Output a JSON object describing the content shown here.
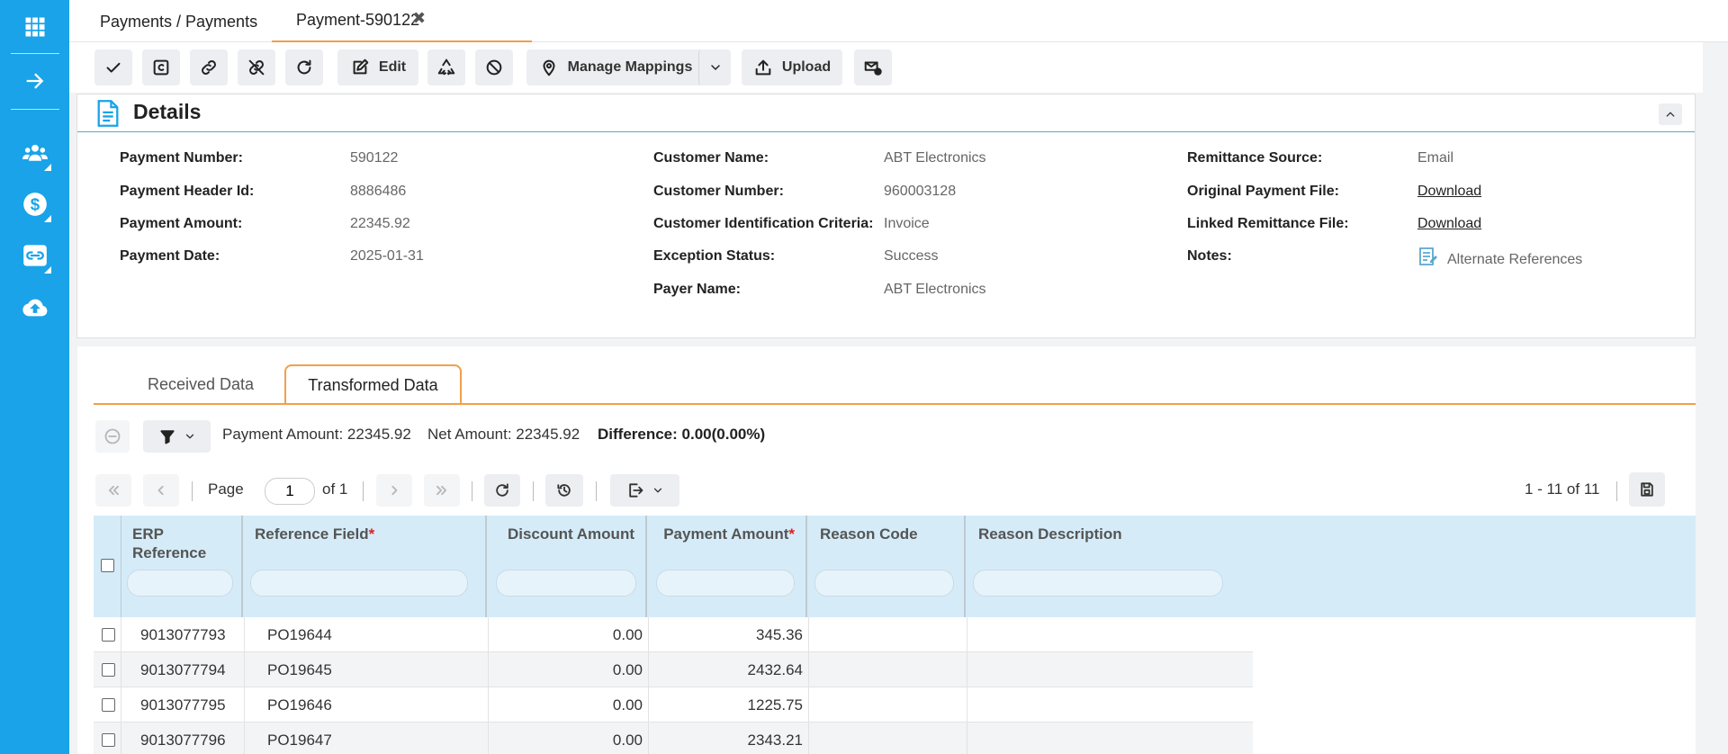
{
  "sidebar": {
    "items": [
      {
        "icon": "apps-grid-icon"
      },
      {
        "icon": "arrow-right-icon"
      },
      {
        "icon": "users-icon"
      },
      {
        "icon": "dollar-icon"
      },
      {
        "icon": "link-icon"
      },
      {
        "icon": "cloud-upload-icon"
      }
    ]
  },
  "tabs": {
    "breadcrumb": "Payments / Payments",
    "document_tab": "Payment-590122",
    "close_glyph": "✖"
  },
  "toolbar": {
    "buttons": [
      {
        "icon": "check-icon"
      },
      {
        "icon": "copyright-icon"
      },
      {
        "icon": "link-icon"
      },
      {
        "icon": "unlink-icon"
      },
      {
        "icon": "refresh-icon"
      },
      {
        "icon": "edit-icon",
        "label": "Edit"
      },
      {
        "icon": "recycle-icon"
      },
      {
        "icon": "block-icon"
      },
      {
        "icon": "map-pin-icon",
        "label": "Manage Mappings"
      },
      {
        "icon": "chevron-down-icon"
      },
      {
        "icon": "upload-icon",
        "label": "Upload"
      },
      {
        "icon": "mail-icon"
      }
    ]
  },
  "details": {
    "title": "Details",
    "col1": [
      {
        "label": "Payment Number:",
        "value": "590122"
      },
      {
        "label": "Payment Header Id:",
        "value": "8886486"
      },
      {
        "label": "Payment Amount:",
        "value": "22345.92"
      },
      {
        "label": "Payment Date:",
        "value": "2025-01-31"
      }
    ],
    "col2": [
      {
        "label": "Customer Name:",
        "value": "ABT Electronics"
      },
      {
        "label": "Customer Number:",
        "value": "960003128"
      },
      {
        "label": "Customer Identification Criteria:",
        "value": "Invoice"
      },
      {
        "label": "Exception Status:",
        "value": "Success"
      },
      {
        "label": "Payer Name:",
        "value": "ABT Electronics"
      }
    ],
    "col3": [
      {
        "label": "Remittance Source:",
        "value": "Email"
      },
      {
        "label": "Original Payment File:",
        "link": "Download"
      },
      {
        "label": "Linked Remittance File:",
        "link": "Download"
      },
      {
        "label": "Notes:",
        "value": "Alternate References",
        "icon": "notes-icon"
      }
    ]
  },
  "data_tabs": {
    "received": "Received Data",
    "transformed": "Transformed Data"
  },
  "summary": {
    "payment_amount": "Payment Amount: 22345.92",
    "net_amount": "Net Amount: 22345.92",
    "difference": "Difference: 0.00(0.00%)"
  },
  "pager": {
    "page_label": "Page",
    "page_value": "1",
    "of_label": "of 1",
    "range": "1 - 11 of 11"
  },
  "grid": {
    "columns": [
      {
        "title": "ERP Reference",
        "required": false
      },
      {
        "title": "Reference Field",
        "required": true
      },
      {
        "title": "Discount Amount",
        "required": false
      },
      {
        "title": "Payment Amount",
        "required": true
      },
      {
        "title": "Reason Code",
        "required": false
      },
      {
        "title": "Reason Description",
        "required": false
      }
    ],
    "rows": [
      {
        "erp": "9013077793",
        "ref": "PO19644",
        "discount": "0.00",
        "payment": "345.36",
        "reason_code": "",
        "reason_desc": ""
      },
      {
        "erp": "9013077794",
        "ref": "PO19645",
        "discount": "0.00",
        "payment": "2432.64",
        "reason_code": "",
        "reason_desc": ""
      },
      {
        "erp": "9013077795",
        "ref": "PO19646",
        "discount": "0.00",
        "payment": "1225.75",
        "reason_code": "",
        "reason_desc": ""
      },
      {
        "erp": "9013077796",
        "ref": "PO19647",
        "discount": "0.00",
        "payment": "2343.21",
        "reason_code": "",
        "reason_desc": ""
      }
    ]
  },
  "colors": {
    "sidebar": "#1aa3e8",
    "accent_orange": "#f0a04b",
    "grid_header": "#d5ecf8",
    "required": "#e02020"
  }
}
